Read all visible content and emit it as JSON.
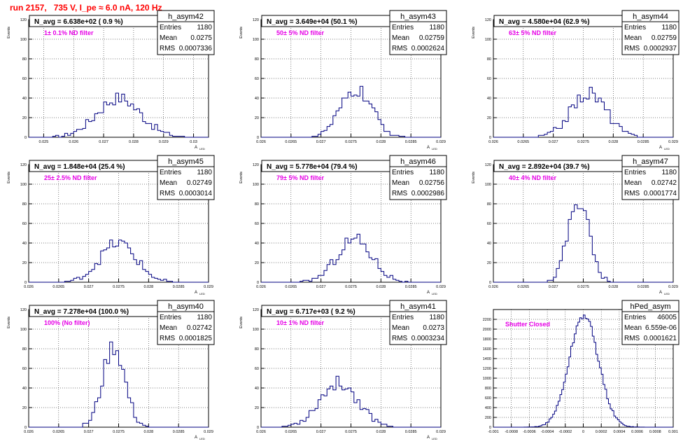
{
  "title": "run 2157,   735 V, I_pe ≈ 6.0 nA, 120 Hz",
  "chart_data": [
    {
      "type": "histogram",
      "name": "h_asym42",
      "ylabel": "Events",
      "xlabel": "A",
      "xlabel_sub": "LED",
      "xlim": [
        0.0245,
        0.0305
      ],
      "ylim": [
        0,
        120
      ],
      "xticks": [
        "0.025",
        "0.026",
        "0.027",
        "0.028",
        "0.029",
        "0.03"
      ],
      "xtick_values": [
        0.025,
        0.026,
        0.027,
        0.028,
        0.029,
        0.03
      ],
      "yticks": [
        0,
        20,
        40,
        60,
        80,
        100,
        120
      ],
      "stats": {
        "title": "h_asym42",
        "rows": [
          [
            "Entries",
            "1180"
          ],
          [
            "Mean",
            "0.0275"
          ],
          [
            "RMS",
            "0.0007336"
          ]
        ]
      },
      "navg": "N_avg = 6.638e+02 ( 0.9 %)",
      "filter": "1± 0.1% ND filter",
      "peak": 40,
      "mean": 0.0275,
      "rms": 0.0007336,
      "nbins": 60
    },
    {
      "type": "histogram",
      "name": "h_asym43",
      "ylabel": "Events",
      "xlabel": "A",
      "xlabel_sub": "LED",
      "xlim": [
        0.026,
        0.029
      ],
      "ylim": [
        0,
        120
      ],
      "xticks": [
        "0.026",
        "0.0265",
        "0.027",
        "0.0275",
        "0.028",
        "0.0285",
        "0.029"
      ],
      "xtick_values": [
        0.026,
        0.0265,
        0.027,
        0.0275,
        0.028,
        0.0285,
        0.029
      ],
      "yticks": [
        0,
        20,
        40,
        60,
        80,
        100,
        120
      ],
      "stats": {
        "title": "h_asym43",
        "rows": [
          [
            "Entries",
            "1180"
          ],
          [
            "Mean",
            "0.02759"
          ],
          [
            "RMS",
            "0.0002624"
          ]
        ]
      },
      "navg": "N_avg = 3.649e+04 (50.1 %)",
      "filter": "50± 5% ND filter",
      "peak": 48,
      "mean": 0.02759,
      "rms": 0.0002624,
      "nbins": 60
    },
    {
      "type": "histogram",
      "name": "h_asym44",
      "ylabel": "Events",
      "xlabel": "A",
      "xlabel_sub": "LED",
      "xlim": [
        0.026,
        0.029
      ],
      "ylim": [
        0,
        120
      ],
      "xticks": [
        "0.026",
        "0.0265",
        "0.027",
        "0.0275",
        "0.028",
        "0.0285",
        "0.029"
      ],
      "xtick_values": [
        0.026,
        0.0265,
        0.027,
        0.0275,
        0.028,
        0.0285,
        0.029
      ],
      "yticks": [
        0,
        20,
        40,
        60,
        80,
        100,
        120
      ],
      "stats": {
        "title": "h_asym44",
        "rows": [
          [
            "Entries",
            "1180"
          ],
          [
            "Mean",
            "0.02759"
          ],
          [
            "RMS",
            "0.0002937"
          ]
        ]
      },
      "navg": "N_avg = 4.580e+04 (62.9 %)",
      "filter": "63± 5% ND filter",
      "peak": 45,
      "mean": 0.02759,
      "rms": 0.0002937,
      "nbins": 60
    },
    {
      "type": "histogram",
      "name": "h_asym45",
      "ylabel": "Events",
      "xlabel": "A",
      "xlabel_sub": "LED",
      "xlim": [
        0.026,
        0.029
      ],
      "ylim": [
        0,
        120
      ],
      "xticks": [
        "0.026",
        "0.0265",
        "0.027",
        "0.0275",
        "0.028",
        "0.0285",
        "0.029"
      ],
      "xtick_values": [
        0.026,
        0.0265,
        0.027,
        0.0275,
        0.028,
        0.0285,
        0.029
      ],
      "yticks": [
        0,
        20,
        40,
        60,
        80,
        100,
        120
      ],
      "stats": {
        "title": "h_asym45",
        "rows": [
          [
            "Entries",
            "1180"
          ],
          [
            "Mean",
            "0.02749"
          ],
          [
            "RMS",
            "0.0003014"
          ]
        ]
      },
      "navg": "N_avg = 1.848e+04 (25.4 %)",
      "filter": "25± 2.5% ND filter",
      "peak": 40,
      "mean": 0.02749,
      "rms": 0.0003014,
      "nbins": 60
    },
    {
      "type": "histogram",
      "name": "h_asym46",
      "ylabel": "Events",
      "xlabel": "A",
      "xlabel_sub": "LED",
      "xlim": [
        0.026,
        0.029
      ],
      "ylim": [
        0,
        120
      ],
      "xticks": [
        "0.026",
        "0.0265",
        "0.027",
        "0.0275",
        "0.028",
        "0.0285",
        "0.029"
      ],
      "xtick_values": [
        0.026,
        0.0265,
        0.027,
        0.0275,
        0.028,
        0.0285,
        0.029
      ],
      "yticks": [
        0,
        20,
        40,
        60,
        80,
        100,
        120
      ],
      "stats": {
        "title": "h_asym46",
        "rows": [
          [
            "Entries",
            "1180"
          ],
          [
            "Mean",
            "0.02756"
          ],
          [
            "RMS",
            "0.0002986"
          ]
        ]
      },
      "navg": "N_avg = 5.778e+04 (79.4 %)",
      "filter": "79± 5% ND filter",
      "peak": 44,
      "mean": 0.02756,
      "rms": 0.0002986,
      "nbins": 60
    },
    {
      "type": "histogram",
      "name": "h_asym47",
      "ylabel": "Events",
      "xlabel": "A",
      "xlabel_sub": "LED",
      "xlim": [
        0.026,
        0.029
      ],
      "ylim": [
        0,
        120
      ],
      "xticks": [
        "0.026",
        "0.0265",
        "0.027",
        "0.0275",
        "0.028",
        "0.0285",
        "0.029"
      ],
      "xtick_values": [
        0.026,
        0.0265,
        0.027,
        0.0275,
        0.028,
        0.0285,
        0.029
      ],
      "yticks": [
        0,
        20,
        40,
        60,
        80,
        100,
        120
      ],
      "stats": {
        "title": "h_asym47",
        "rows": [
          [
            "Entries",
            "1180"
          ],
          [
            "Mean",
            "0.02742"
          ],
          [
            "RMS",
            "0.0001774"
          ]
        ]
      },
      "navg": "N_avg = 2.892e+04 (39.7 %)",
      "filter": "40± 4% ND filter",
      "peak": 84,
      "mean": 0.02742,
      "rms": 0.0001774,
      "nbins": 60
    },
    {
      "type": "histogram",
      "name": "h_asym40",
      "ylabel": "Events",
      "xlabel": "A",
      "xlabel_sub": "LED",
      "xlim": [
        0.026,
        0.029
      ],
      "ylim": [
        0,
        120
      ],
      "xticks": [
        "0.026",
        "0.0265",
        "0.027",
        "0.0275",
        "0.028",
        "0.0285",
        "0.029"
      ],
      "xtick_values": [
        0.026,
        0.0265,
        0.027,
        0.0275,
        0.028,
        0.0285,
        0.029
      ],
      "yticks": [
        0,
        20,
        40,
        60,
        80,
        100,
        120
      ],
      "stats": {
        "title": "h_asym40",
        "rows": [
          [
            "Entries",
            "1180"
          ],
          [
            "Mean",
            "0.02742"
          ],
          [
            "RMS",
            "0.0001825"
          ]
        ]
      },
      "navg": "N_avg = 7.278e+04 (100.0 %)",
      "filter": "100% (No filter)",
      "peak": 83,
      "mean": 0.02742,
      "rms": 0.0001825,
      "nbins": 60
    },
    {
      "type": "histogram",
      "name": "h_asym41",
      "ylabel": "Events",
      "xlabel": "A",
      "xlabel_sub": "LED",
      "xlim": [
        0.026,
        0.029
      ],
      "ylim": [
        0,
        120
      ],
      "xticks": [
        "0.026",
        "0.0265",
        "0.027",
        "0.0275",
        "0.028",
        "0.0285",
        "0.029"
      ],
      "xtick_values": [
        0.026,
        0.0265,
        0.027,
        0.0275,
        0.028,
        0.0285,
        0.029
      ],
      "yticks": [
        0,
        20,
        40,
        60,
        80,
        100,
        120
      ],
      "stats": {
        "title": "h_asym41",
        "rows": [
          [
            "Entries",
            "1180"
          ],
          [
            "Mean",
            "0.0273"
          ],
          [
            "RMS",
            "0.0003234"
          ]
        ]
      },
      "navg": "N_avg = 6.717e+03 ( 9.2 %)",
      "filter": "10± 1% ND filter",
      "peak": 45,
      "mean": 0.0273,
      "rms": 0.0003234,
      "nbins": 60
    },
    {
      "type": "histogram",
      "name": "hPed_asym",
      "ylabel": "",
      "xlabel": "",
      "xlabel_sub": "",
      "xlim": [
        -0.001,
        0.001
      ],
      "ylim": [
        0,
        2400
      ],
      "xticks": [
        "-0.001",
        "-0.0008",
        "-0.0006",
        "-0.0004",
        "-0.0002",
        "0",
        "0.0002",
        "0.0004",
        "0.0006",
        "0.0008",
        "0.001"
      ],
      "xtick_values": [
        -0.001,
        -0.0008,
        -0.0006,
        -0.0004,
        -0.0002,
        0,
        0.0002,
        0.0004,
        0.0006,
        0.0008,
        0.001
      ],
      "yticks": [
        0,
        200,
        400,
        600,
        800,
        1000,
        1200,
        1400,
        1600,
        1800,
        2000,
        2200
      ],
      "stats": {
        "title": "hPed_asym",
        "rows": [
          [
            "Entries",
            "46005"
          ],
          [
            "Mean",
            "6.559e-06"
          ],
          [
            "RMS",
            "0.0001621"
          ]
        ]
      },
      "navg": "",
      "filter": "Shutter Closed",
      "peak": 2280,
      "mean": 6.6e-06,
      "rms": 0.0001621,
      "nbins": 100
    }
  ]
}
